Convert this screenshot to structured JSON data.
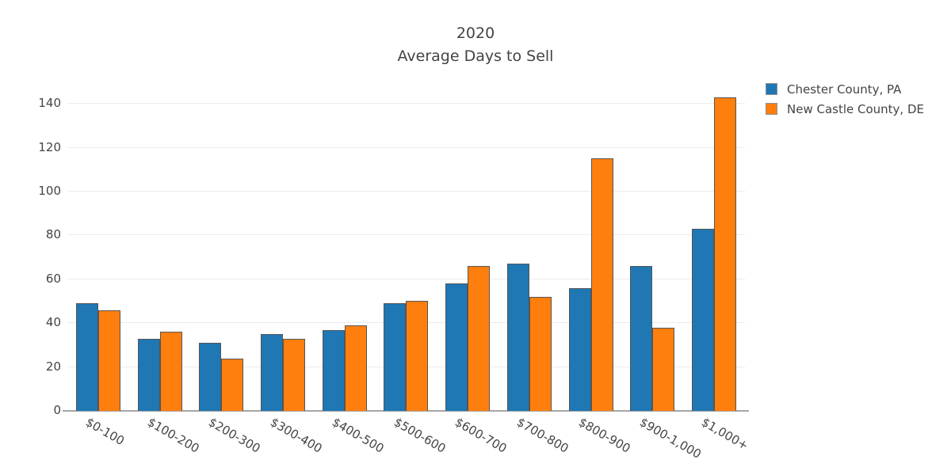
{
  "title": {
    "line1": "2020",
    "line2": "Average Days to Sell"
  },
  "chart_data": {
    "type": "bar",
    "title": "2020 — Average Days to Sell",
    "xlabel": "",
    "ylabel": "",
    "categories": [
      "$0-100",
      "$100-200",
      "$200-300",
      "$300-400",
      "$400-500",
      "$500-600",
      "$600-700",
      "$700-800",
      "$800-900",
      "$900-1,000",
      "$1,000+"
    ],
    "series": [
      {
        "name": "Chester County, PA",
        "color": "#1f77b4",
        "values": [
          49,
          33,
          31,
          35,
          37,
          49,
          58,
          67,
          56,
          66,
          83
        ]
      },
      {
        "name": "New Castle County, DE",
        "color": "#ff7f0e",
        "values": [
          46,
          36,
          24,
          33,
          39,
          50,
          66,
          52,
          115,
          38,
          143
        ]
      }
    ],
    "ylim": [
      0,
      150
    ],
    "yticks": [
      0,
      20,
      40,
      60,
      80,
      100,
      120,
      140
    ],
    "grid": true,
    "legend_position": "top-right",
    "bar_border_color": "#555555",
    "text_color": "#444444"
  }
}
